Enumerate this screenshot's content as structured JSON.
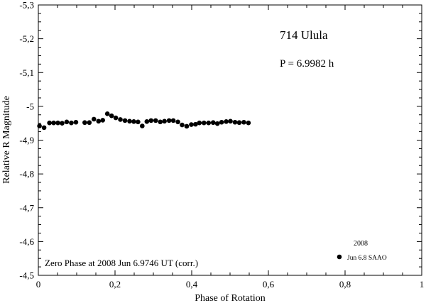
{
  "chart_data": {
    "type": "scatter",
    "title": "714 Ulula",
    "subtitle": "P = 6.9982 h",
    "xlabel": "Phase of Rotation",
    "ylabel": "Relative R Magnitude",
    "xlim": [
      0,
      1
    ],
    "ylim": [
      -4.5,
      -5.3
    ],
    "y_inverted": true,
    "x_ticks": [
      "0",
      "0,2",
      "0,4",
      "0,6",
      "0,8",
      "1"
    ],
    "x_tick_values": [
      0,
      0.2,
      0.4,
      0.6,
      0.8,
      1.0
    ],
    "y_ticks": [
      "-4,5",
      "-4,6",
      "-4,7",
      "-4,8",
      "-4,9",
      "-5",
      "-5,1",
      "-5,2",
      "-5,3"
    ],
    "y_tick_values": [
      -4.5,
      -4.6,
      -4.7,
      -4.8,
      -4.9,
      -5.0,
      -5.1,
      -5.2,
      -5.3
    ],
    "annotation": "Zero Phase at 2008 Jun 6.9746 UT (corr.)",
    "legend": {
      "title": "2008",
      "position": "bottom-right",
      "entries": [
        "Jun 6.8 SAAO"
      ]
    },
    "grid": false,
    "series": [
      {
        "name": "Jun 6.8 SAAO",
        "x": [
          0.003,
          0.015,
          0.029,
          0.04,
          0.051,
          0.062,
          0.074,
          0.086,
          0.098,
          0.121,
          0.133,
          0.145,
          0.157,
          0.168,
          0.18,
          0.191,
          0.202,
          0.214,
          0.226,
          0.238,
          0.249,
          0.26,
          0.271,
          0.283,
          0.294,
          0.306,
          0.318,
          0.329,
          0.341,
          0.352,
          0.364,
          0.375,
          0.387,
          0.399,
          0.41,
          0.42,
          0.432,
          0.444,
          0.456,
          0.467,
          0.478,
          0.49,
          0.501,
          0.513,
          0.524,
          0.536,
          0.548
        ],
        "y": [
          -4.942,
          -4.937,
          -4.951,
          -4.951,
          -4.951,
          -4.95,
          -4.954,
          -4.951,
          -4.953,
          -4.952,
          -4.952,
          -4.962,
          -4.956,
          -4.959,
          -4.978,
          -4.972,
          -4.966,
          -4.961,
          -4.958,
          -4.956,
          -4.955,
          -4.954,
          -4.942,
          -4.955,
          -4.958,
          -4.958,
          -4.954,
          -4.956,
          -4.958,
          -4.958,
          -4.954,
          -4.945,
          -4.941,
          -4.946,
          -4.947,
          -4.951,
          -4.951,
          -4.951,
          -4.952,
          -4.949,
          -4.953,
          -4.955,
          -4.956,
          -4.953,
          -4.952,
          -4.953,
          -4.951
        ]
      }
    ]
  }
}
